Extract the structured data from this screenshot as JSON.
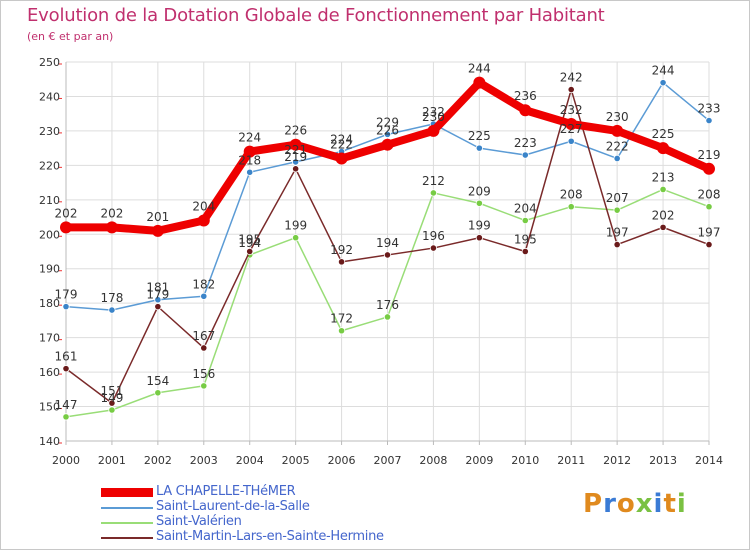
{
  "title": "Evolution de la Dotation Globale de Fonctionnement par Habitant",
  "subtitle": "(en € et par an)",
  "logo_text": "Proxiti",
  "colors": {
    "title": "#c0306e",
    "legend_text": "#4466cc",
    "grid": "#dddddd",
    "axis": "#bbbbbb",
    "tick_text": "#333333"
  },
  "chart_data": {
    "type": "line",
    "x": [
      2000,
      2001,
      2002,
      2003,
      2004,
      2005,
      2006,
      2007,
      2008,
      2009,
      2010,
      2011,
      2012,
      2013,
      2014
    ],
    "ylim": [
      140,
      250
    ],
    "yticks": [
      140,
      150,
      160,
      170,
      180,
      190,
      200,
      210,
      220,
      230,
      240,
      250
    ],
    "grid": true,
    "legend_position": "bottom-left",
    "series": [
      {
        "name": "LA CHAPELLE-THéMER",
        "color": "#ee0000",
        "marker_color": "#ee0000",
        "emphasis": true,
        "values": [
          202,
          202,
          201,
          204,
          224,
          226,
          222,
          226,
          230,
          244,
          236,
          232,
          230,
          225,
          219
        ]
      },
      {
        "name": "Saint-Laurent-de-la-Salle",
        "color": "#5b9bd5",
        "marker_color": "#3a84c9",
        "emphasis": false,
        "values": [
          179,
          178,
          181,
          182,
          218,
          221,
          224,
          229,
          232,
          225,
          223,
          227,
          222,
          244,
          233
        ]
      },
      {
        "name": "Saint-Valérien",
        "color": "#99dd77",
        "marker_color": "#77cc44",
        "emphasis": false,
        "values": [
          147,
          149,
          154,
          156,
          194,
          199,
          172,
          176,
          212,
          209,
          204,
          208,
          207,
          213,
          208
        ]
      },
      {
        "name": "Saint-Martin-Lars-en-Sainte-Hermine",
        "color": "#7a2a2a",
        "marker_color": "#6a1a1a",
        "emphasis": false,
        "values": [
          161,
          151,
          179,
          167,
          195,
          219,
          192,
          194,
          196,
          199,
          195,
          242,
          197,
          202,
          197
        ]
      }
    ]
  }
}
